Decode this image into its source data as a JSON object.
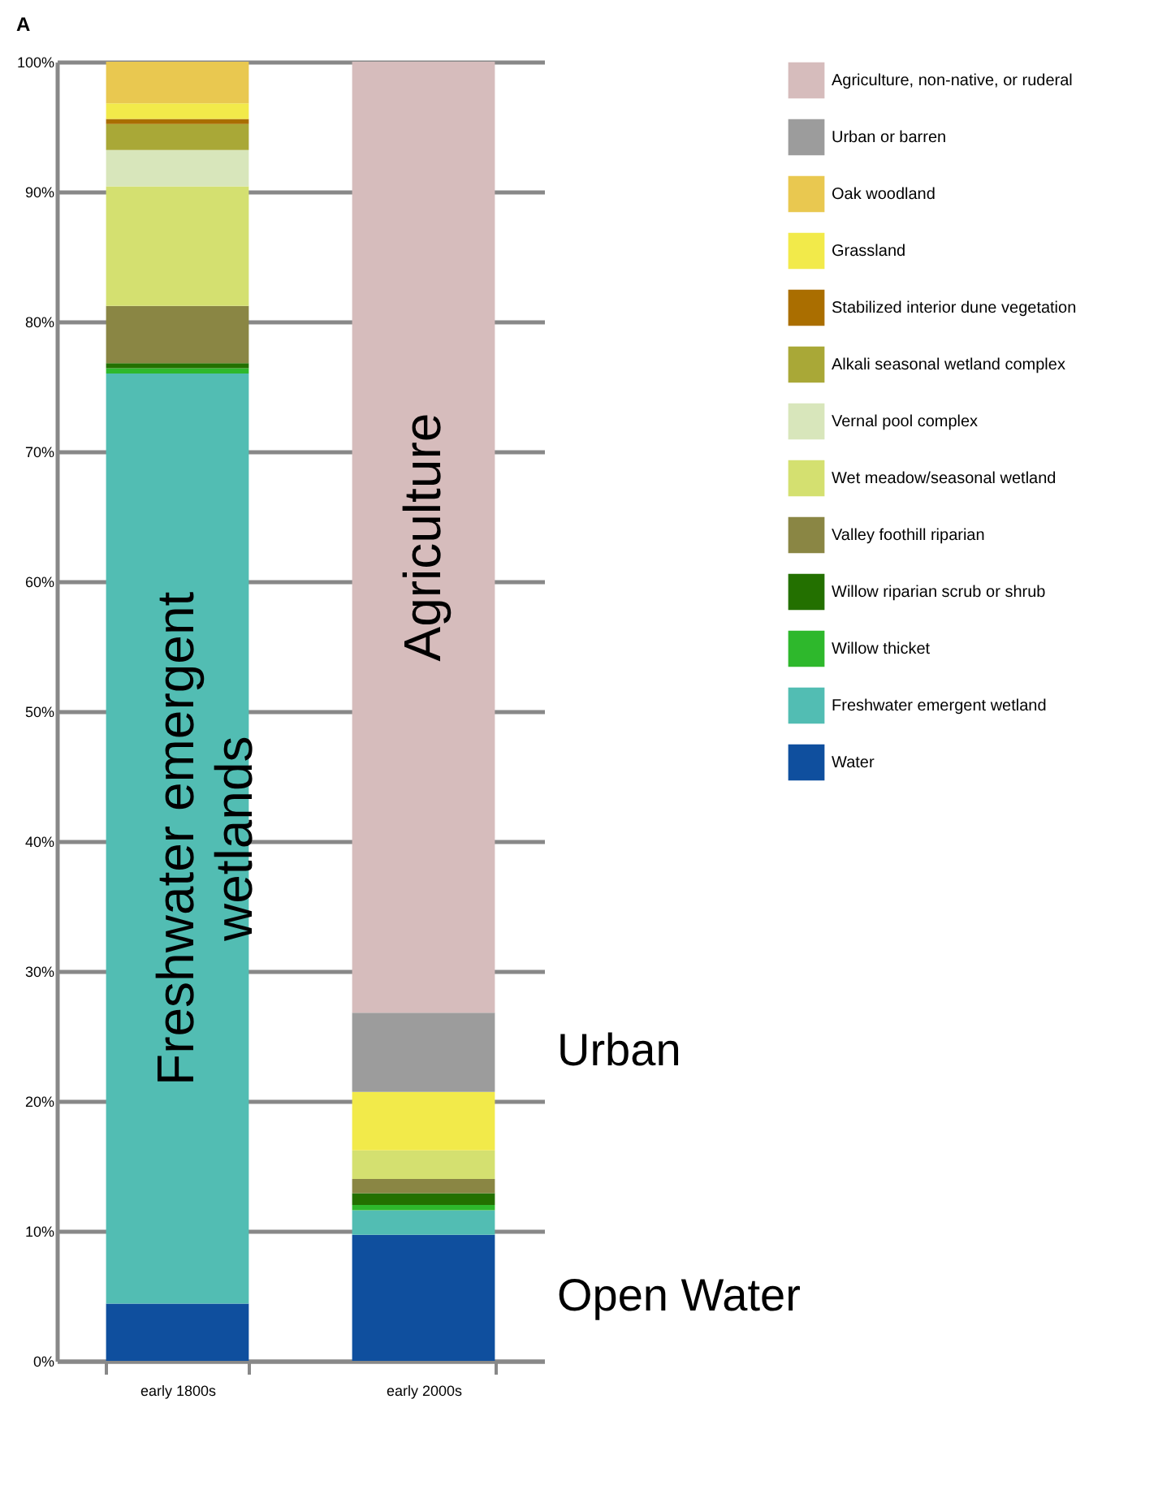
{
  "chart_data": {
    "type": "bar",
    "title": "A",
    "stacked": true,
    "categories": [
      "early 1800s",
      "early 2000s"
    ],
    "series": [
      {
        "name": "Water",
        "color": "#0f4f9e",
        "values": [
          4.4,
          9.7
        ]
      },
      {
        "name": "Freshwater emergent wetland",
        "color": "#52bdb3",
        "values": [
          71.6,
          1.9
        ]
      },
      {
        "name": "Willow thicket",
        "color": "#2eb82c",
        "values": [
          0.4,
          0.4
        ]
      },
      {
        "name": "Willow riparian scrub or shrub",
        "color": "#237000",
        "values": [
          0.4,
          0.9
        ]
      },
      {
        "name": "Valley foothill riparian",
        "color": "#8a8644",
        "values": [
          4.4,
          1.1
        ]
      },
      {
        "name": "Wet meadow/seasonal wetland",
        "color": "#d4e070",
        "values": [
          9.2,
          2.2
        ]
      },
      {
        "name": "Vernal pool complex",
        "color": "#d8e6bb",
        "values": [
          2.8,
          null
        ]
      },
      {
        "name": "Alkali seasonal wetland complex",
        "color": "#a9a837",
        "values": [
          2.0,
          null
        ]
      },
      {
        "name": "Stabilized interior dune vegetation",
        "color": "#aa6e00",
        "values": [
          0.4,
          null
        ]
      },
      {
        "name": "Grassland",
        "color": "#f2ea4a",
        "values": [
          1.2,
          4.5
        ]
      },
      {
        "name": "Oak woodland",
        "color": "#e9c850",
        "values": [
          3.2,
          null
        ]
      },
      {
        "name": "Urban or barren",
        "color": "#9c9c9c",
        "values": [
          null,
          6.1
        ]
      },
      {
        "name": "Agriculture, non-native, or ruderal",
        "color": "#d6bcbc",
        "values": [
          null,
          73.2
        ]
      }
    ],
    "ylim": [
      0,
      100
    ],
    "yticks": [
      {
        "value": 0,
        "label": "0%"
      },
      {
        "value": 10,
        "label": "10%"
      },
      {
        "value": 20,
        "label": "20%"
      },
      {
        "value": 30,
        "label": "30%"
      },
      {
        "value": 40,
        "label": "40%"
      },
      {
        "value": 50,
        "label": "50%"
      },
      {
        "value": 60,
        "label": "60%"
      },
      {
        "value": 70,
        "label": "70%"
      },
      {
        "value": 80,
        "label": "80%"
      },
      {
        "value": 90,
        "label": "90%"
      },
      {
        "value": 100,
        "label": "100%"
      }
    ],
    "grid": "y",
    "legend": "top right",
    "annotations": [
      "Freshwater emergent\nwetlands",
      "Agriculture",
      "Open Water",
      "Urban"
    ]
  }
}
